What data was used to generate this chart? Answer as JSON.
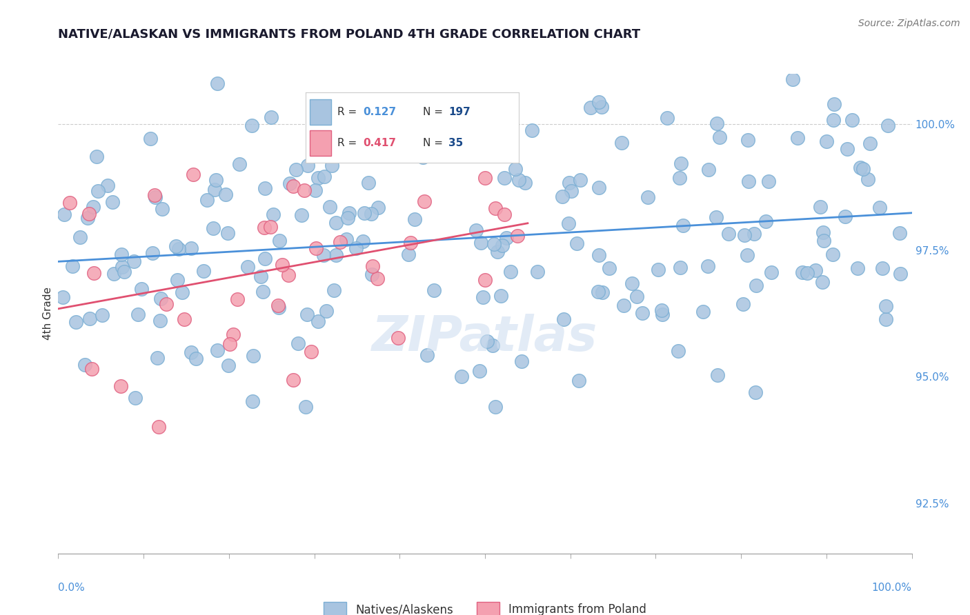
{
  "title": "NATIVE/ALASKAN VS IMMIGRANTS FROM POLAND 4TH GRADE CORRELATION CHART",
  "source": "Source: ZipAtlas.com",
  "ylabel": "4th Grade",
  "ylabel_ticks": [
    "92.5%",
    "95.0%",
    "97.5%",
    "100.0%"
  ],
  "ylabel_values": [
    92.5,
    95.0,
    97.5,
    100.0
  ],
  "xlim": [
    0.0,
    100.0
  ],
  "ylim": [
    91.5,
    101.0
  ],
  "blue_color": "#a8c4e0",
  "blue_edge": "#7bafd4",
  "pink_color": "#f4a0b0",
  "pink_edge": "#e06080",
  "blue_line_color": "#4a90d9",
  "pink_line_color": "#e05070",
  "watermark_color": "#d0dff0",
  "title_color": "#1a1a2e",
  "axis_label_color": "#4a90d9",
  "legend_n_color": "#1a4a8a",
  "grid_color": "#cccccc",
  "background_color": "#ffffff",
  "blue_seed": 42,
  "pink_seed": 7
}
